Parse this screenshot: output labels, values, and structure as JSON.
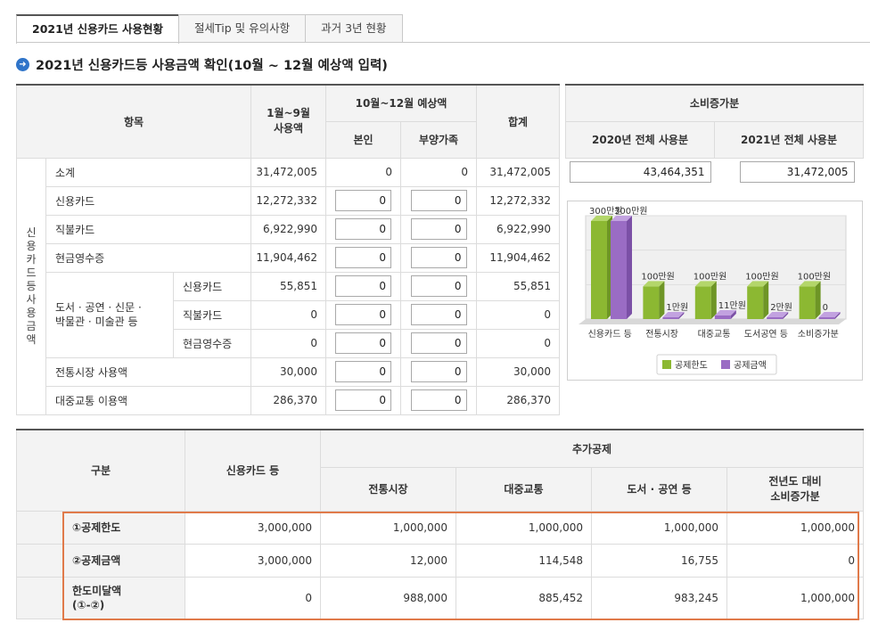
{
  "tabs": [
    "2021년 신용카드 사용현황",
    "절세Tip 및 유의사항",
    "과거 3년 현황"
  ],
  "section_title": "2021년 신용카드등 사용금액 확인(10월 ~ 12월 예상액 입력)",
  "usage": {
    "col_item": "항목",
    "col_jan_sep": "1월~9월\n사용액",
    "col_oct_dec": "10월~12월 예상액",
    "col_self": "본인",
    "col_dependents": "부양가족",
    "col_total": "합계",
    "side_label": "신용카드등 사용금액",
    "rows": {
      "subtotal": {
        "label": "소계",
        "jan_sep": "31,472,005",
        "self": "0",
        "dep": "0",
        "total": "31,472,005"
      },
      "credit": {
        "label": "신용카드",
        "jan_sep": "12,272,332",
        "self": "0",
        "dep": "0",
        "total": "12,272,332"
      },
      "debit": {
        "label": "직불카드",
        "jan_sep": "6,922,990",
        "self": "0",
        "dep": "0",
        "total": "6,922,990"
      },
      "cash": {
        "label": "현금영수증",
        "jan_sep": "11,904,462",
        "self": "0",
        "dep": "0",
        "total": "11,904,462"
      },
      "culture_group": "도서 · 공연 · 신문 ·\n박물관 · 미술관 등",
      "culture_credit": {
        "label": "신용카드",
        "jan_sep": "55,851",
        "self": "0",
        "dep": "0",
        "total": "55,851"
      },
      "culture_debit": {
        "label": "직불카드",
        "jan_sep": "0",
        "self": "0",
        "dep": "0",
        "total": "0"
      },
      "culture_cash": {
        "label": "현금영수증",
        "jan_sep": "0",
        "self": "0",
        "dep": "0",
        "total": "0"
      },
      "market": {
        "label": "전통시장 사용액",
        "jan_sep": "30,000",
        "self": "0",
        "dep": "0",
        "total": "30,000"
      },
      "transit": {
        "label": "대중교통 이용액",
        "jan_sep": "286,370",
        "self": "0",
        "dep": "0",
        "total": "286,370"
      }
    }
  },
  "increase": {
    "title": "소비증가분",
    "col_2020": "2020년 전체 사용분",
    "col_2021": "2021년 전체 사용분",
    "val_2020": "43,464,351",
    "val_2021": "31,472,005"
  },
  "chart_data": {
    "type": "bar",
    "categories": [
      "신용카드 등",
      "전통시장",
      "대중교통",
      "도서공연 등",
      "소비증가분"
    ],
    "series": [
      {
        "name": "공제한도",
        "values": [
          300,
          100,
          100,
          100,
          100
        ],
        "labels": [
          "300만원",
          "100만원",
          "100만원",
          "100만원",
          "100만원"
        ],
        "color": "#8cb832"
      },
      {
        "name": "공제금액",
        "values": [
          300,
          1,
          11,
          2,
          0
        ],
        "labels": [
          "300만원",
          "1만원",
          "11만원",
          "2만원",
          "0"
        ],
        "color": "#9a6cc4"
      }
    ],
    "ylim": [
      0,
      300
    ]
  },
  "deduction": {
    "col_category": "구분",
    "col_credit": "신용카드 등",
    "col_additional": "추가공제",
    "col_market": "전통시장",
    "col_transit": "대중교통",
    "col_culture": "도서 · 공연 등",
    "col_increase": "전년도 대비\n소비증가분",
    "rows": [
      {
        "label": "①공제한도",
        "credit": "3,000,000",
        "market": "1,000,000",
        "transit": "1,000,000",
        "culture": "1,000,000",
        "increase": "1,000,000"
      },
      {
        "label": "②공제금액",
        "credit": "3,000,000",
        "market": "12,000",
        "transit": "114,548",
        "culture": "16,755",
        "increase": "0"
      },
      {
        "label": "한도미달액\n(①-②)",
        "credit": "0",
        "market": "988,000",
        "transit": "885,452",
        "culture": "983,245",
        "increase": "1,000,000"
      }
    ]
  }
}
